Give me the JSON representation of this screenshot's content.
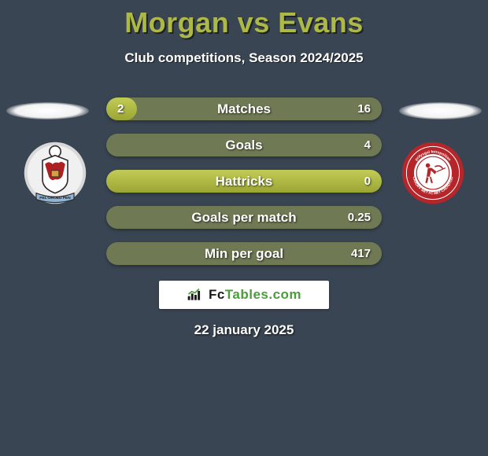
{
  "colors": {
    "background": "#394552",
    "accent": "#aeb845",
    "bar_top": "#c2cc55",
    "bar_bottom": "#9aa534",
    "bar_empty": "#6f7954",
    "brand_green": "#4a9d3a"
  },
  "header": {
    "title": "Morgan vs Evans",
    "subtitle": "Club competitions, Season 2024/2025"
  },
  "crest_left": {
    "name": "club-crest-morgan",
    "ring_outer": "#d8d8d8",
    "ring_inner": "#f0f0f0",
    "banner_color": "#8fb4d6",
    "dragon_color": "#b02020",
    "shield_stroke": "#2a2a2a"
  },
  "crest_right": {
    "name": "club-crest-evans",
    "ring_outer": "#b4262a",
    "ring_inner": "#b4262a",
    "center_bg": "#ffffff",
    "inner_ring": "#ffffff",
    "figure_color": "#b4262a"
  },
  "bars": [
    {
      "label": "Matches",
      "left": "2",
      "right": "16",
      "fill_pct": 11
    },
    {
      "label": "Goals",
      "left": "",
      "right": "4",
      "fill_pct": 0
    },
    {
      "label": "Hattricks",
      "left": "",
      "right": "0",
      "fill_pct": 0,
      "full": true
    },
    {
      "label": "Goals per match",
      "left": "",
      "right": "0.25",
      "fill_pct": 0
    },
    {
      "label": "Min per goal",
      "left": "",
      "right": "417",
      "fill_pct": 0
    }
  ],
  "branding": {
    "prefix": "Fc",
    "suffix": "Tables.com"
  },
  "date": "22 january 2025"
}
